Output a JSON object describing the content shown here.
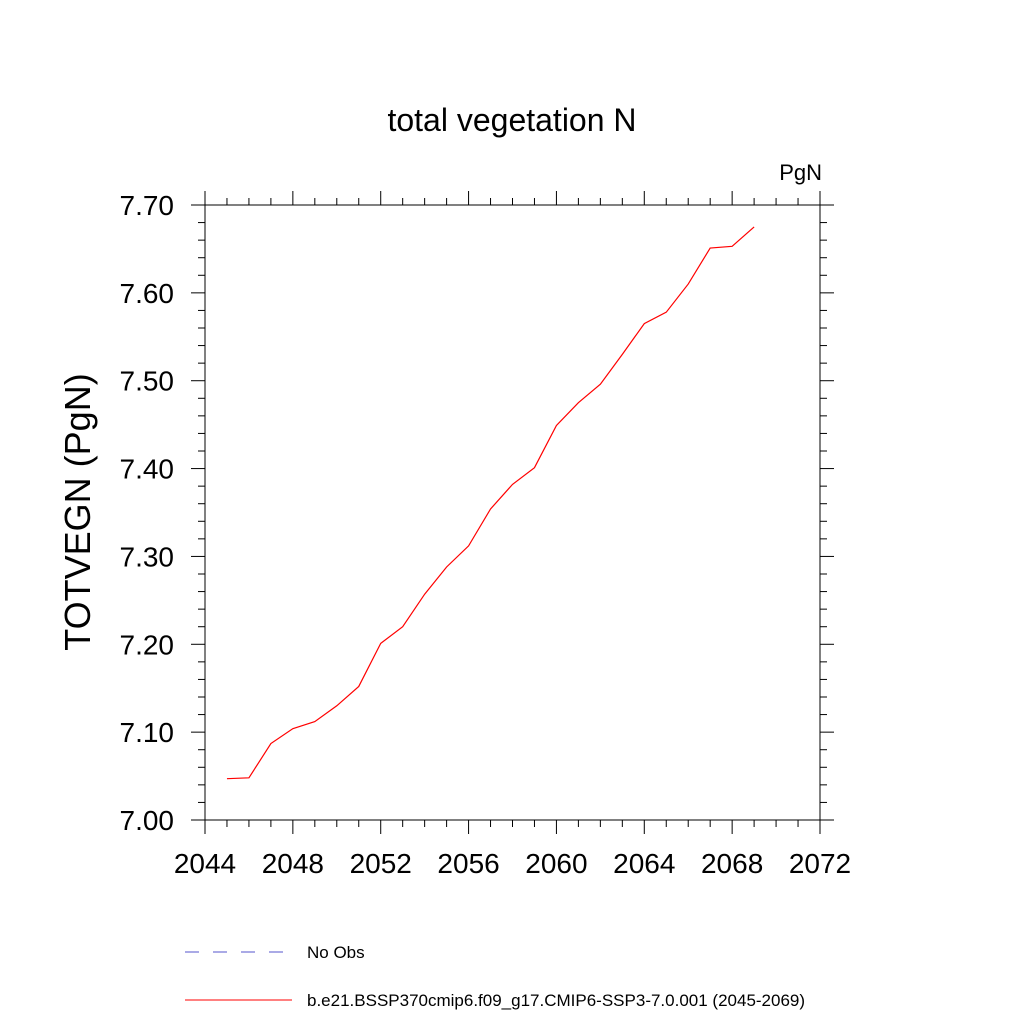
{
  "chart_data": {
    "type": "line",
    "title": "total vegetation N",
    "units_label": "PgN",
    "xlabel": "",
    "ylabel": "TOTVEGN  (PgN)",
    "xlim": [
      2044,
      2072
    ],
    "ylim": [
      7.0,
      7.7
    ],
    "x_ticks": [
      "2044",
      "2048",
      "2052",
      "2056",
      "2060",
      "2064",
      "2068",
      "2072"
    ],
    "y_ticks": [
      "7.00",
      "7.10",
      "7.20",
      "7.30",
      "7.40",
      "7.50",
      "7.60",
      "7.70"
    ],
    "grid": false,
    "legend_position": "bottom",
    "legend": [
      {
        "label": "No Obs",
        "color": "#5555cc",
        "style": "dashed"
      },
      {
        "label": "b.e21.BSSP370cmip6.f09_g17.CMIP6-SSP3-7.0.001 (2045-2069)",
        "color": "#ff0000",
        "style": "solid"
      }
    ],
    "series": [
      {
        "name": "b.e21.BSSP370cmip6.f09_g17.CMIP6-SSP3-7.0.001 (2045-2069)",
        "color": "#ff0000",
        "x": [
          2045,
          2046,
          2047,
          2048,
          2049,
          2050,
          2051,
          2052,
          2053,
          2054,
          2055,
          2056,
          2057,
          2058,
          2059,
          2060,
          2061,
          2062,
          2063,
          2064,
          2065,
          2066,
          2067,
          2068,
          2069
        ],
        "y": [
          7.047,
          7.048,
          7.087,
          7.104,
          7.112,
          7.13,
          7.152,
          7.201,
          7.22,
          7.257,
          7.288,
          7.312,
          7.354,
          7.382,
          7.401,
          7.449,
          7.475,
          7.496,
          7.53,
          7.565,
          7.578,
          7.61,
          7.651,
          7.653,
          7.675
        ]
      }
    ]
  }
}
